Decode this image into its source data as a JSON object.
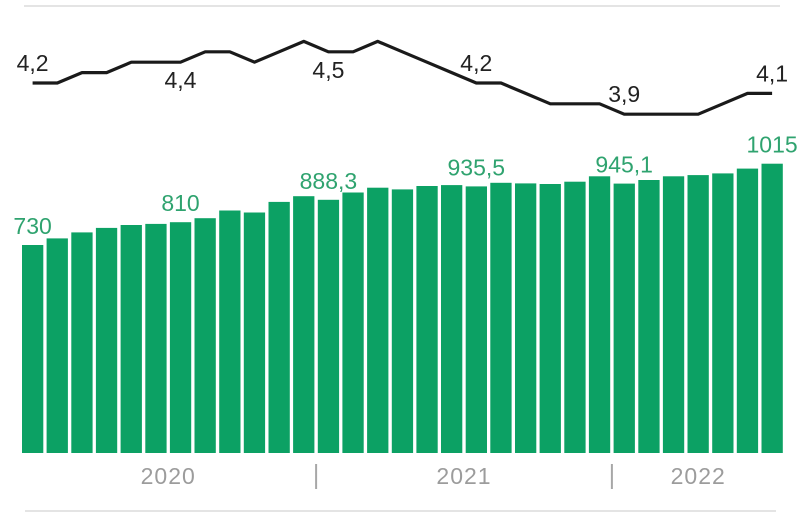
{
  "chart_data": {
    "type": "combo",
    "title": "",
    "x_unit": "month",
    "n_points": 31,
    "grid": "off",
    "legend": "none",
    "year_groups": [
      {
        "label": "2020",
        "from_index": 0,
        "to_index": 11
      },
      {
        "label": "2021",
        "from_index": 12,
        "to_index": 23
      },
      {
        "label": "2022",
        "from_index": 24,
        "to_index": 30
      }
    ],
    "line_series": {
      "name": "rate-line",
      "type": "line",
      "color": "#1a1a1a",
      "values": [
        4.2,
        4.2,
        4.3,
        4.3,
        4.4,
        4.4,
        4.4,
        4.5,
        4.5,
        4.4,
        4.5,
        4.6,
        4.5,
        4.5,
        4.6,
        4.5,
        4.4,
        4.3,
        4.2,
        4.2,
        4.1,
        4.0,
        4.0,
        4.0,
        3.9,
        3.9,
        3.9,
        3.9,
        4.0,
        4.1,
        4.1
      ],
      "ylim_hint": [
        3.7,
        4.8
      ],
      "labels": [
        {
          "index": 0,
          "text": "4,2",
          "position": "above"
        },
        {
          "index": 6,
          "text": "4,4",
          "position": "below"
        },
        {
          "index": 12,
          "text": "4,5",
          "position": "below"
        },
        {
          "index": 18,
          "text": "4,2",
          "position": "above"
        },
        {
          "index": 24,
          "text": "3,9",
          "position": "above"
        },
        {
          "index": 30,
          "text": "4,1",
          "position": "above"
        }
      ],
      "label_color": "#222222"
    },
    "bar_series": {
      "name": "value-bars",
      "type": "bar",
      "color": "#0ca164",
      "label_color": "#2fa36f",
      "ylim": [
        0,
        1150
      ],
      "values": [
        730,
        753,
        774,
        790,
        800,
        804,
        810,
        824,
        851,
        844,
        881,
        901,
        888.3,
        914,
        931,
        925,
        937,
        940,
        935.5,
        948,
        946,
        944,
        952,
        971,
        945.1,
        958,
        971,
        975,
        981,
        998,
        1015
      ],
      "labels": [
        {
          "index": 0,
          "text": "730"
        },
        {
          "index": 6,
          "text": "810"
        },
        {
          "index": 12,
          "text": "888,3"
        },
        {
          "index": 18,
          "text": "935,5"
        },
        {
          "index": 24,
          "text": "945,1"
        },
        {
          "index": 30,
          "text": "1015"
        }
      ]
    },
    "x_axis": {
      "label_color": "#9c9c9c",
      "separator_color": "#a7a7a7",
      "separator_glyph": "|"
    },
    "frame": {
      "hairline_color": "#e4e4e4"
    }
  }
}
